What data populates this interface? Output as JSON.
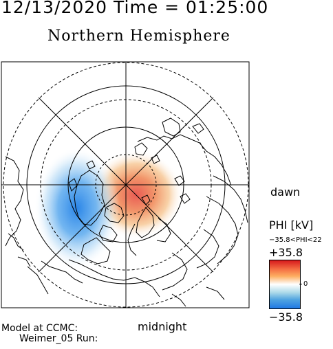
{
  "header": {
    "datetime": "12/13/2020 Time = 01:25:00"
  },
  "title": "Northern Hemisphere",
  "labels": {
    "dawn": "dawn",
    "midnight": "midnight",
    "model": "Model at CCMC:",
    "run": "Weimer_05 Run:"
  },
  "colorbar": {
    "quantity": "PHI [kV]",
    "range_text": "−35.8<PHI<22",
    "max_label": "+35.8",
    "min_label": "−35.8",
    "zero_label": "0",
    "colors": [
      "#d7191c",
      "#fdae61",
      "#ffffff",
      "#abd9e9",
      "#1f78e4"
    ]
  },
  "potential": {
    "max_kv": 35.8,
    "min_kv": -35.8
  }
}
